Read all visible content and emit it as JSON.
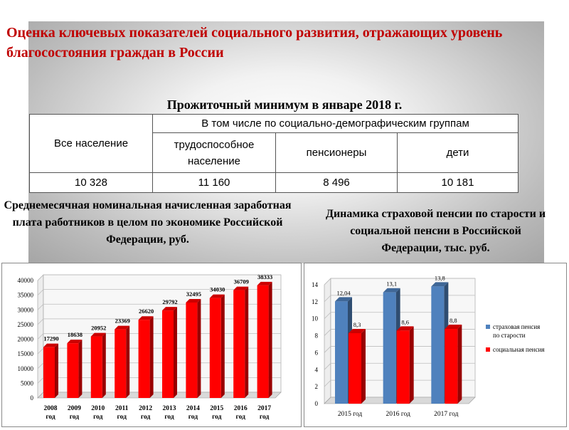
{
  "title": "Оценка ключевых показателей социального развития, отражающих уровень благосостояния граждан в России",
  "table": {
    "caption": "Прожиточный минимум в январе 2018 г.",
    "col_all": "Все население",
    "col_group": "В том числе по социально-демографическим группам",
    "col_working": "трудоспособное население",
    "col_pensioners": "пенсионеры",
    "col_children": "дети",
    "val_all": "10 328",
    "val_working": "11 160",
    "val_pensioners": "8 496",
    "val_children": "10 181"
  },
  "chart1_caption": "Среднемесячная номинальная начисленная заработная плата работников в целом по экономике Российской Федерации, руб.",
  "chart2_caption": "Динамика страховой пенсии по старости и социальной пенсии в Российской Федерации, тыс. руб.",
  "colors": {
    "title": "#c00000",
    "bar_red": "#ff0000",
    "bar_blue": "#4f81bd"
  },
  "chart_data": [
    {
      "type": "bar",
      "title": "",
      "categories": [
        "2008 год",
        "2009 год",
        "2010 год",
        "2011 год",
        "2012 год",
        "2013 год",
        "2014 год",
        "2015 год",
        "2016 год",
        "2017 год"
      ],
      "values": [
        17290,
        18638,
        20952,
        23369,
        26620,
        29792,
        32495,
        34030,
        36709,
        38333
      ],
      "data_labels": [
        "17290",
        "18638",
        "20952",
        "23369",
        "26620",
        "29792",
        "32495",
        "34030",
        "36709",
        "38333"
      ],
      "yticks": [
        "0",
        "5000",
        "10000",
        "15000",
        "20000",
        "25000",
        "30000",
        "35000",
        "40000"
      ],
      "ylim": [
        0,
        40000
      ],
      "grid": true,
      "legend": "none",
      "style": "3d"
    },
    {
      "type": "bar",
      "title": "",
      "categories": [
        "2015 год",
        "2016 год",
        "2017 год"
      ],
      "series": [
        {
          "name": "страховая пенсия по старости",
          "values": [
            12.04,
            13.1,
            13.8
          ],
          "labels": [
            "12,04",
            "13,1",
            "13,8"
          ]
        },
        {
          "name": "социальная пенсия",
          "values": [
            8.3,
            8.6,
            8.8
          ],
          "labels": [
            "8,3",
            "8,6",
            "8,8"
          ]
        }
      ],
      "yticks": [
        "0",
        "2",
        "4",
        "6",
        "8",
        "10",
        "12",
        "14"
      ],
      "ylim": [
        0,
        14
      ],
      "grid": true,
      "legend": "right",
      "style": "3d"
    }
  ]
}
